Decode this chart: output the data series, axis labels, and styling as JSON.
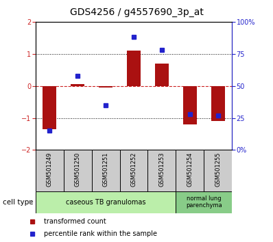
{
  "title": "GDS4256 / g4557690_3p_at",
  "categories": [
    "GSM501249",
    "GSM501250",
    "GSM501251",
    "GSM501252",
    "GSM501253",
    "GSM501254",
    "GSM501255"
  ],
  "transformed_count": [
    -1.35,
    0.05,
    -0.05,
    1.1,
    0.7,
    -1.2,
    -1.1
  ],
  "percentile_rank": [
    15,
    58,
    35,
    88,
    78,
    28,
    27
  ],
  "bar_color": "#aa1111",
  "dot_color": "#2222cc",
  "left_ylim": [
    -2,
    2
  ],
  "right_ylim": [
    0,
    100
  ],
  "left_yticks": [
    -2,
    -1,
    0,
    1,
    2
  ],
  "right_yticks": [
    0,
    25,
    50,
    75,
    100
  ],
  "right_yticklabels": [
    "0%",
    "25",
    "50",
    "75",
    "100%"
  ],
  "cell_type_label": "cell type",
  "legend_items": [
    {
      "label": "transformed count",
      "color": "#aa1111"
    },
    {
      "label": "percentile rank within the sample",
      "color": "#2222cc"
    }
  ],
  "sample_box_color": "#cccccc",
  "grp1_color": "#bbeeaa",
  "grp2_color": "#88cc88",
  "grp1_label": "caseous TB granulomas",
  "grp2_label": "normal lung\nparenchyma",
  "grp1_count": 5,
  "grp2_count": 2,
  "title_fontsize": 10,
  "tick_fontsize": 7,
  "label_fontsize": 7
}
